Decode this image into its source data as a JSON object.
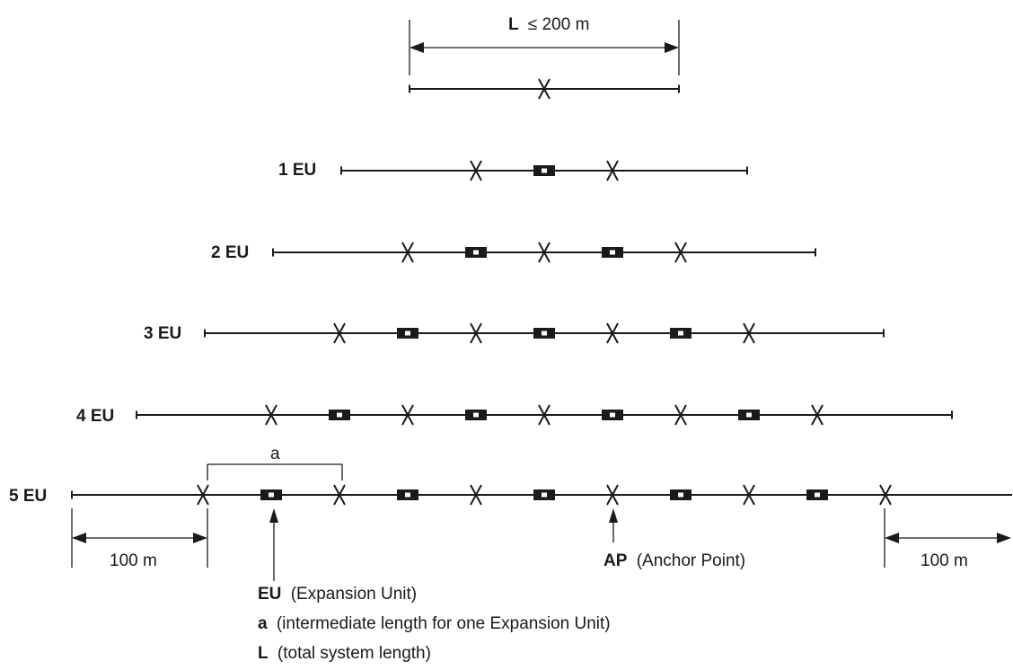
{
  "top_dimension": {
    "symbol": "L",
    "value": "≤ 200 m"
  },
  "rows": [
    {
      "label": "1 EU"
    },
    {
      "label": "2 EU"
    },
    {
      "label": "3 EU"
    },
    {
      "label": "4 EU"
    },
    {
      "label": "5 EU"
    }
  ],
  "intermediate_length_symbol": "a",
  "end_zone_left": "100 m",
  "end_zone_right": "100 m",
  "anchor_point": {
    "symbol": "AP",
    "text": "(Anchor Point)"
  },
  "legend": [
    {
      "symbol": "EU",
      "text": "(Expansion Unit)"
    },
    {
      "symbol": "a",
      "text": "(intermediate length for one Expansion Unit)"
    },
    {
      "symbol": "L",
      "text": "(total system length)"
    }
  ]
}
